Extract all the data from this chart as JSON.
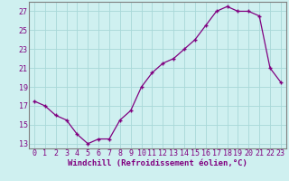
{
  "x": [
    0,
    1,
    2,
    3,
    4,
    5,
    6,
    7,
    8,
    9,
    10,
    11,
    12,
    13,
    14,
    15,
    16,
    17,
    18,
    19,
    20,
    21,
    22,
    23
  ],
  "y": [
    17.5,
    17.0,
    16.0,
    15.5,
    14.0,
    13.0,
    13.5,
    13.5,
    15.5,
    16.5,
    19.0,
    20.5,
    21.5,
    22.0,
    23.0,
    24.0,
    25.5,
    27.0,
    27.5,
    27.0,
    27.0,
    26.5,
    21.0,
    19.5
  ],
  "line_color": "#800080",
  "marker": "+",
  "marker_size": 4,
  "bg_color": "#cff0f0",
  "grid_color": "#a8d8d8",
  "xlabel": "Windchill (Refroidissement éolien,°C)",
  "ylim": [
    12.5,
    28
  ],
  "xlim": [
    -0.5,
    23.5
  ],
  "yticks": [
    13,
    15,
    17,
    19,
    21,
    23,
    25,
    27
  ],
  "xticks": [
    0,
    1,
    2,
    3,
    4,
    5,
    6,
    7,
    8,
    9,
    10,
    11,
    12,
    13,
    14,
    15,
    16,
    17,
    18,
    19,
    20,
    21,
    22,
    23
  ],
  "tick_color": "#800080",
  "label_fontsize": 6.5,
  "tick_fontsize": 6.0,
  "spine_color": "#808080",
  "line_width": 0.9,
  "marker_size_val": 3.5
}
